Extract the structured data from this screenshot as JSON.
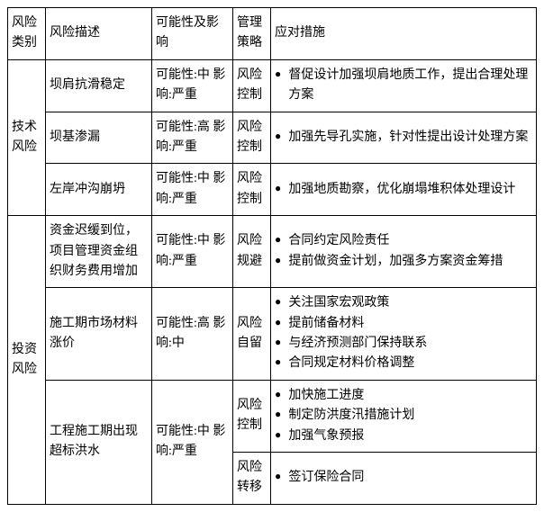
{
  "headers": {
    "category": "风险类别",
    "description": "风险描述",
    "probability": "可能性及影响",
    "strategy": "管理策略",
    "measures": "应对措施"
  },
  "cat1": "技术风险",
  "cat2": "投资风险",
  "r1": {
    "desc": "坝肩抗滑稳定",
    "prob": "可能性:中 影响:严重",
    "strat": "风险控制",
    "m1": "督促设计加强坝肩地质工作，提出合理处理方案"
  },
  "r2": {
    "desc": "坝基渗漏",
    "prob": "可能性:高 影响:严重",
    "strat": "风险控制",
    "m1": "加强先导孔实施，针对性提出设计处理方案"
  },
  "r3": {
    "desc": "左岸冲沟崩坍",
    "prob": "可能性:中 影响:严重",
    "strat": "风险控制",
    "m1": "加强地质勘察，优化崩塌堆积体处理设计"
  },
  "r4": {
    "desc": "资金迟缓到位，项目管理资金组织财务费用增加",
    "prob": "可能性:中 影响:严重",
    "strat": "风险规避",
    "m1": "合同约定风险责任",
    "m2": "提前做资金计划，加强多方案资金筹措"
  },
  "r5": {
    "desc": "施工期市场材料涨价",
    "prob": "可能性:高 影　响:中",
    "strat": "风险自留",
    "m1": "关注国家宏观政策",
    "m2": "提前储备材料",
    "m3": "与经济预测部门保持联系",
    "m4": "合同规定材料价格调整"
  },
  "r6": {
    "desc": "工程施工期出现超标洪水",
    "prob": "可能性:中 影响:严重",
    "strat1": "风险控制",
    "m1": "加快施工进度",
    "m2": "制定防洪度汛措施计划",
    "m3": "加强气象预报",
    "strat2": "风险转移",
    "m4": "签订保险合同"
  }
}
